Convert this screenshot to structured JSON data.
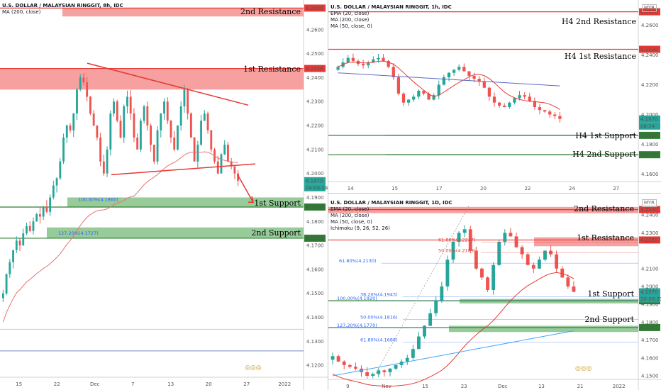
{
  "panels": [
    {
      "id": "p1",
      "title": "U.S. DOLLAR / MALAYSIAN RINGGIT, 8h, IDC",
      "indicators": [
        "MA (200, close)"
      ],
      "currency": "",
      "price_ticks": [
        "4.2600",
        "4.2500",
        "4.2400",
        "4.2300",
        "4.2200",
        "4.2100",
        "4.2000",
        "4.1900",
        "4.1800",
        "4.1700",
        "4.1600",
        "4.1500",
        "4.1400",
        "4.1300",
        "4.1200"
      ],
      "time_ticks": [
        "15",
        "22",
        "Dec",
        "7",
        "13",
        "20",
        "27",
        "2022"
      ],
      "zones": [
        {
          "label": "2nd Resistance",
          "price_tag": "4.2690",
          "color": "#e53935"
        },
        {
          "label": "1st Resistance",
          "price_tag": "4.2438",
          "color": "#e53935"
        },
        {
          "label": "1st Support",
          "price_tag": "4.1860",
          "color": "#2e7d32"
        },
        {
          "label": "2nd Support",
          "price_tag": "4.1730",
          "color": "#2e7d32"
        }
      ],
      "fib": [
        {
          "label": "100.00%(4.1860)"
        },
        {
          "label": "127.20%(4.1727)"
        }
      ],
      "last_price": "4.1970",
      "countdown": "04:08:24"
    },
    {
      "id": "p2",
      "title": "U.S. DOLLAR / MALAYSIAN RINGGIT, 1h, IDC",
      "indicators": [
        "EMA (20, close)",
        "MA (200, close)",
        "MA (50, close, 0)"
      ],
      "currency": "MYR",
      "price_ticks": [
        "4.2600",
        "4.2400",
        "4.2200",
        "4.2000",
        "4.1800",
        "4.1600"
      ],
      "time_ticks": [
        "14",
        "15",
        "17",
        "20",
        "22",
        "24",
        "27"
      ],
      "zones": [
        {
          "label": "H4 2nd Resistance",
          "price_tag": "4.2690",
          "color": "#e53935"
        },
        {
          "label": "H4 1st Resistance",
          "price_tag": "4.2438",
          "color": "#e53935"
        },
        {
          "label": "H4 1st Support",
          "price_tag": "4.1860",
          "color": "#2e7d32"
        },
        {
          "label": "H4 2nd Support",
          "price_tag": "4.1730",
          "color": "#2e7d32"
        }
      ],
      "last_price": "4.1970",
      "countdown": "08:24"
    },
    {
      "id": "p3",
      "title": "U.S. DOLLAR / MALAYSIAN RINGGIT, 1D, IDC",
      "indicators": [
        "EMA (20, close)",
        "MA (200, close)",
        "MA (50, close, 0)",
        "Ichimoku (9, 26, 52, 26)"
      ],
      "currency": "MYR",
      "price_ticks": [
        "4.2400",
        "4.2300",
        "4.2100",
        "4.2000",
        "4.1900",
        "4.1800",
        "4.1700",
        "4.1600",
        "4.1500"
      ],
      "time_ticks": [
        "9",
        "Nov",
        "15",
        "23",
        "Dec",
        "13",
        "21",
        "2022"
      ],
      "zones": [
        {
          "label": "2nd Resistance",
          "price_tag": "4.2430",
          "color": "#e53935"
        },
        {
          "label": "1st Resistance",
          "price_tag": "4.2260",
          "color": "#e53935"
        },
        {
          "label": "1st Support",
          "price_tag": "4.1920",
          "color": "#2e7d32"
        },
        {
          "label": "2nd Support",
          "price_tag": "4.1770",
          "color": "#2e7d32"
        }
      ],
      "fib": [
        {
          "label": "61.80%(4.2247)",
          "color": "#e53935"
        },
        {
          "label": "50.00%(4.2189)",
          "color": "#e53935"
        },
        {
          "label": "61.80%(4.2130)",
          "color": "#2962ff"
        },
        {
          "label": "38.20%(4.1943)",
          "color": "#2962ff"
        },
        {
          "label": "100.00%(4.1920)",
          "color": "#2962ff"
        },
        {
          "label": "50.00%(4.1816)",
          "color": "#2962ff"
        },
        {
          "label": "127.20%(4.1770)",
          "color": "#2962ff"
        },
        {
          "label": "61.80%(4.1688)",
          "color": "#2962ff"
        }
      ],
      "last_price": "4.1970",
      "countdown": "20:08:23"
    }
  ],
  "chart_data": [
    {
      "type": "candlestick",
      "title": "U.S. DOLLAR / MALAYSIAN RINGGIT, 8h, IDC",
      "ylim": [
        4.115,
        4.27
      ],
      "levels": {
        "r2": 4.269,
        "r1": 4.2438,
        "s1": 4.186,
        "s2": 4.173
      },
      "closes": [
        4.15,
        4.158,
        4.163,
        4.168,
        4.172,
        4.17,
        4.175,
        4.178,
        4.176,
        4.18,
        4.183,
        4.182,
        4.186,
        4.184,
        4.19,
        4.195,
        4.198,
        4.205,
        4.215,
        4.22,
        4.218,
        4.225,
        4.235,
        4.24,
        4.238,
        4.232,
        4.225,
        4.22,
        4.215,
        4.205,
        4.2,
        4.21,
        4.225,
        4.23,
        4.222,
        4.215,
        4.228,
        4.232,
        4.225,
        4.215,
        4.21,
        4.222,
        4.228,
        4.22,
        4.212,
        4.205,
        4.218,
        4.225,
        4.23,
        4.222,
        4.215,
        4.21,
        4.22,
        4.228,
        4.235,
        4.225,
        4.215,
        4.205,
        4.212,
        4.222,
        4.225,
        4.218,
        4.21,
        4.205,
        4.2,
        4.208,
        4.212,
        4.205,
        4.203,
        4.2,
        4.197
      ]
    },
    {
      "type": "candlestick",
      "title": "U.S. DOLLAR / MALAYSIAN RINGGIT, 1h, IDC",
      "ylim": [
        4.155,
        4.275
      ],
      "levels": {
        "r2": 4.269,
        "r1": 4.2438,
        "s1": 4.186,
        "s2": 4.173
      },
      "closes": [
        4.232,
        4.235,
        4.238,
        4.236,
        4.234,
        4.233,
        4.235,
        4.237,
        4.238,
        4.236,
        4.232,
        4.225,
        4.214,
        4.208,
        4.21,
        4.212,
        4.216,
        4.214,
        4.21,
        4.213,
        4.22,
        4.225,
        4.228,
        4.23,
        4.232,
        4.229,
        4.226,
        4.224,
        4.222,
        4.218,
        4.212,
        4.208,
        4.206,
        4.205,
        4.208,
        4.211,
        4.213,
        4.212,
        4.209,
        4.205,
        4.203,
        4.202,
        4.2,
        4.199,
        4.197
      ]
    },
    {
      "type": "candlestick",
      "title": "U.S. DOLLAR / MALAYSIAN RINGGIT, 1D, IDC",
      "ylim": [
        4.148,
        4.248
      ],
      "levels": {
        "r2": 4.243,
        "r1": 4.226,
        "s1": 4.192,
        "s2": 4.177
      },
      "closes": [
        4.161,
        4.158,
        4.156,
        4.155,
        4.154,
        4.152,
        4.15,
        4.151,
        4.153,
        4.152,
        4.154,
        4.156,
        4.158,
        4.16,
        4.165,
        4.172,
        4.178,
        4.185,
        4.192,
        4.2,
        4.215,
        4.225,
        4.23,
        4.232,
        4.22,
        4.21,
        4.205,
        4.198,
        4.212,
        4.225,
        4.23,
        4.228,
        4.222,
        4.218,
        4.212,
        4.21,
        4.215,
        4.22,
        4.218,
        4.21,
        4.205,
        4.2,
        4.197
      ]
    }
  ]
}
